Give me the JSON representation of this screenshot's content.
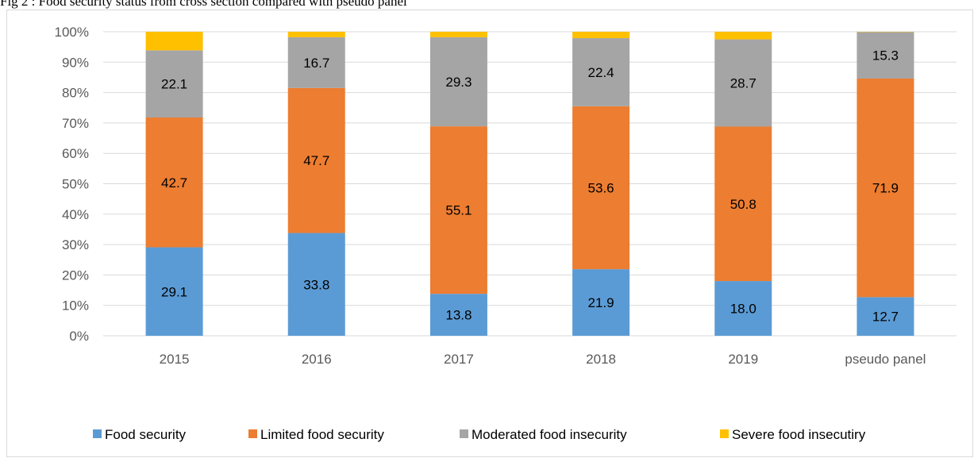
{
  "caption": "Fig 2 : Food security status from cross section compared with pseudo panel",
  "chart_data": {
    "type": "bar",
    "stacked": true,
    "percent_stacked": true,
    "categories": [
      "2015",
      "2016",
      "2017",
      "2018",
      "2019",
      "pseudo panel"
    ],
    "series": [
      {
        "name": "Food security",
        "color": "#5b9bd5",
        "values": [
          29.1,
          33.8,
          13.8,
          21.9,
          18.0,
          12.7
        ],
        "labels": [
          "29.1",
          "33.8",
          "13.8",
          "21.9",
          "18.0",
          "12.7"
        ]
      },
      {
        "name": "Limited food security",
        "color": "#ed7d31",
        "values": [
          42.7,
          47.7,
          55.1,
          53.6,
          50.8,
          71.9
        ],
        "labels": [
          "42.7",
          "47.7",
          "55.1",
          "53.6",
          "50.8",
          "71.9"
        ]
      },
      {
        "name": "Moderated food insecurity",
        "color": "#a5a5a5",
        "values": [
          22.1,
          16.7,
          29.3,
          22.4,
          28.7,
          15.3
        ],
        "labels": [
          "22.1",
          "16.7",
          "29.3",
          "22.4",
          "28.7",
          "15.3"
        ]
      },
      {
        "name": "Severe food insecutiry",
        "color": "#ffc000",
        "values": [
          6.1,
          1.8,
          1.8,
          2.1,
          2.5,
          0.1
        ],
        "labels": [
          "",
          "",
          "",
          "",
          "",
          ""
        ]
      }
    ],
    "y_ticks": [
      "0%",
      "10%",
      "20%",
      "30%",
      "40%",
      "50%",
      "60%",
      "70%",
      "80%",
      "90%",
      "100%"
    ],
    "ylim": [
      0,
      100
    ],
    "grid": true,
    "legend_position": "bottom"
  }
}
